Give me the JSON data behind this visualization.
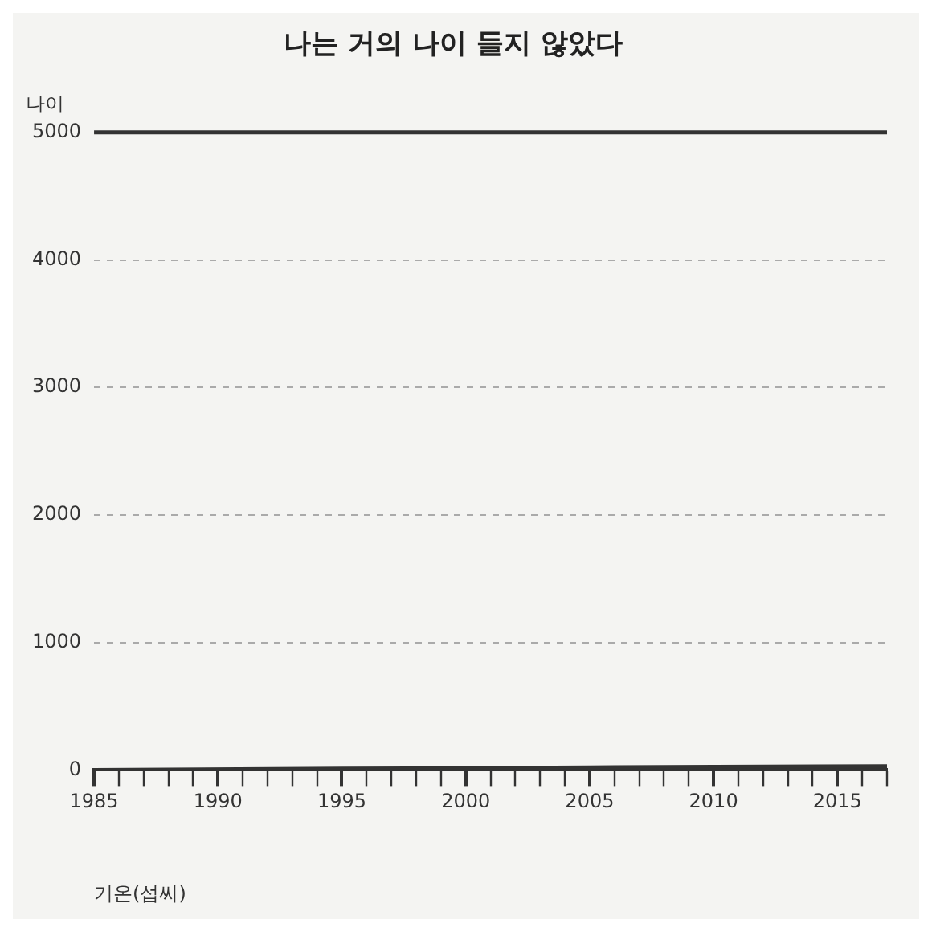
{
  "chart_data": {
    "type": "line",
    "title": "나는 거의 나이 들지 않았다",
    "ylabel": "나이",
    "xlabel": "기온(섭씨)",
    "series": [
      {
        "color": "#333333",
        "values": [
          0,
          10,
          20,
          30
        ],
        "x": [
          1985,
          1995,
          2005,
          2017
        ]
      }
    ],
    "xlim": [
      1985,
      2017
    ],
    "xticks": [
      1985,
      {
        "value": 1986,
        "label": null
      },
      {
        "value": 1987,
        "label": null
      },
      {
        "value": 1988,
        "label": null
      },
      {
        "value": 1989,
        "label": null
      },
      1990,
      {
        "value": 1991,
        "label": null
      },
      {
        "value": 1992,
        "label": null
      },
      {
        "value": 1993,
        "label": null
      },
      {
        "value": 1994,
        "label": null
      },
      1995,
      {
        "value": 1996,
        "label": null
      },
      {
        "value": 1997,
        "label": null
      },
      {
        "value": 1998,
        "label": null
      },
      {
        "value": 1999,
        "label": null
      },
      2000,
      {
        "value": 2001,
        "label": null
      },
      {
        "value": 2002,
        "label": null
      },
      {
        "value": 2003,
        "label": null
      },
      {
        "value": 2004,
        "label": null
      },
      2005,
      {
        "value": 2006,
        "label": null
      },
      {
        "value": 2007,
        "label": null
      },
      {
        "value": 2008,
        "label": null
      },
      {
        "value": 2009,
        "label": null
      },
      2010,
      {
        "value": 2011,
        "label": null
      },
      {
        "value": 2012,
        "label": null
      },
      {
        "value": 2013,
        "label": null
      },
      {
        "value": 2014,
        "label": null
      },
      2015,
      {
        "value": 2016,
        "label": null
      },
      {
        "value": 2017,
        "label": null
      }
    ],
    "ylim": [
      0,
      5000
    ],
    "yticks": [
      0,
      1000,
      2000,
      3000,
      4000,
      5000
    ],
    "ref_lines": [
      {
        "axis": "y",
        "value": 5000,
        "color": "#333333",
        "line_style": "solid"
      }
    ],
    "grid": "y",
    "legend": false,
    "marker": "none",
    "line_style": "solid"
  }
}
